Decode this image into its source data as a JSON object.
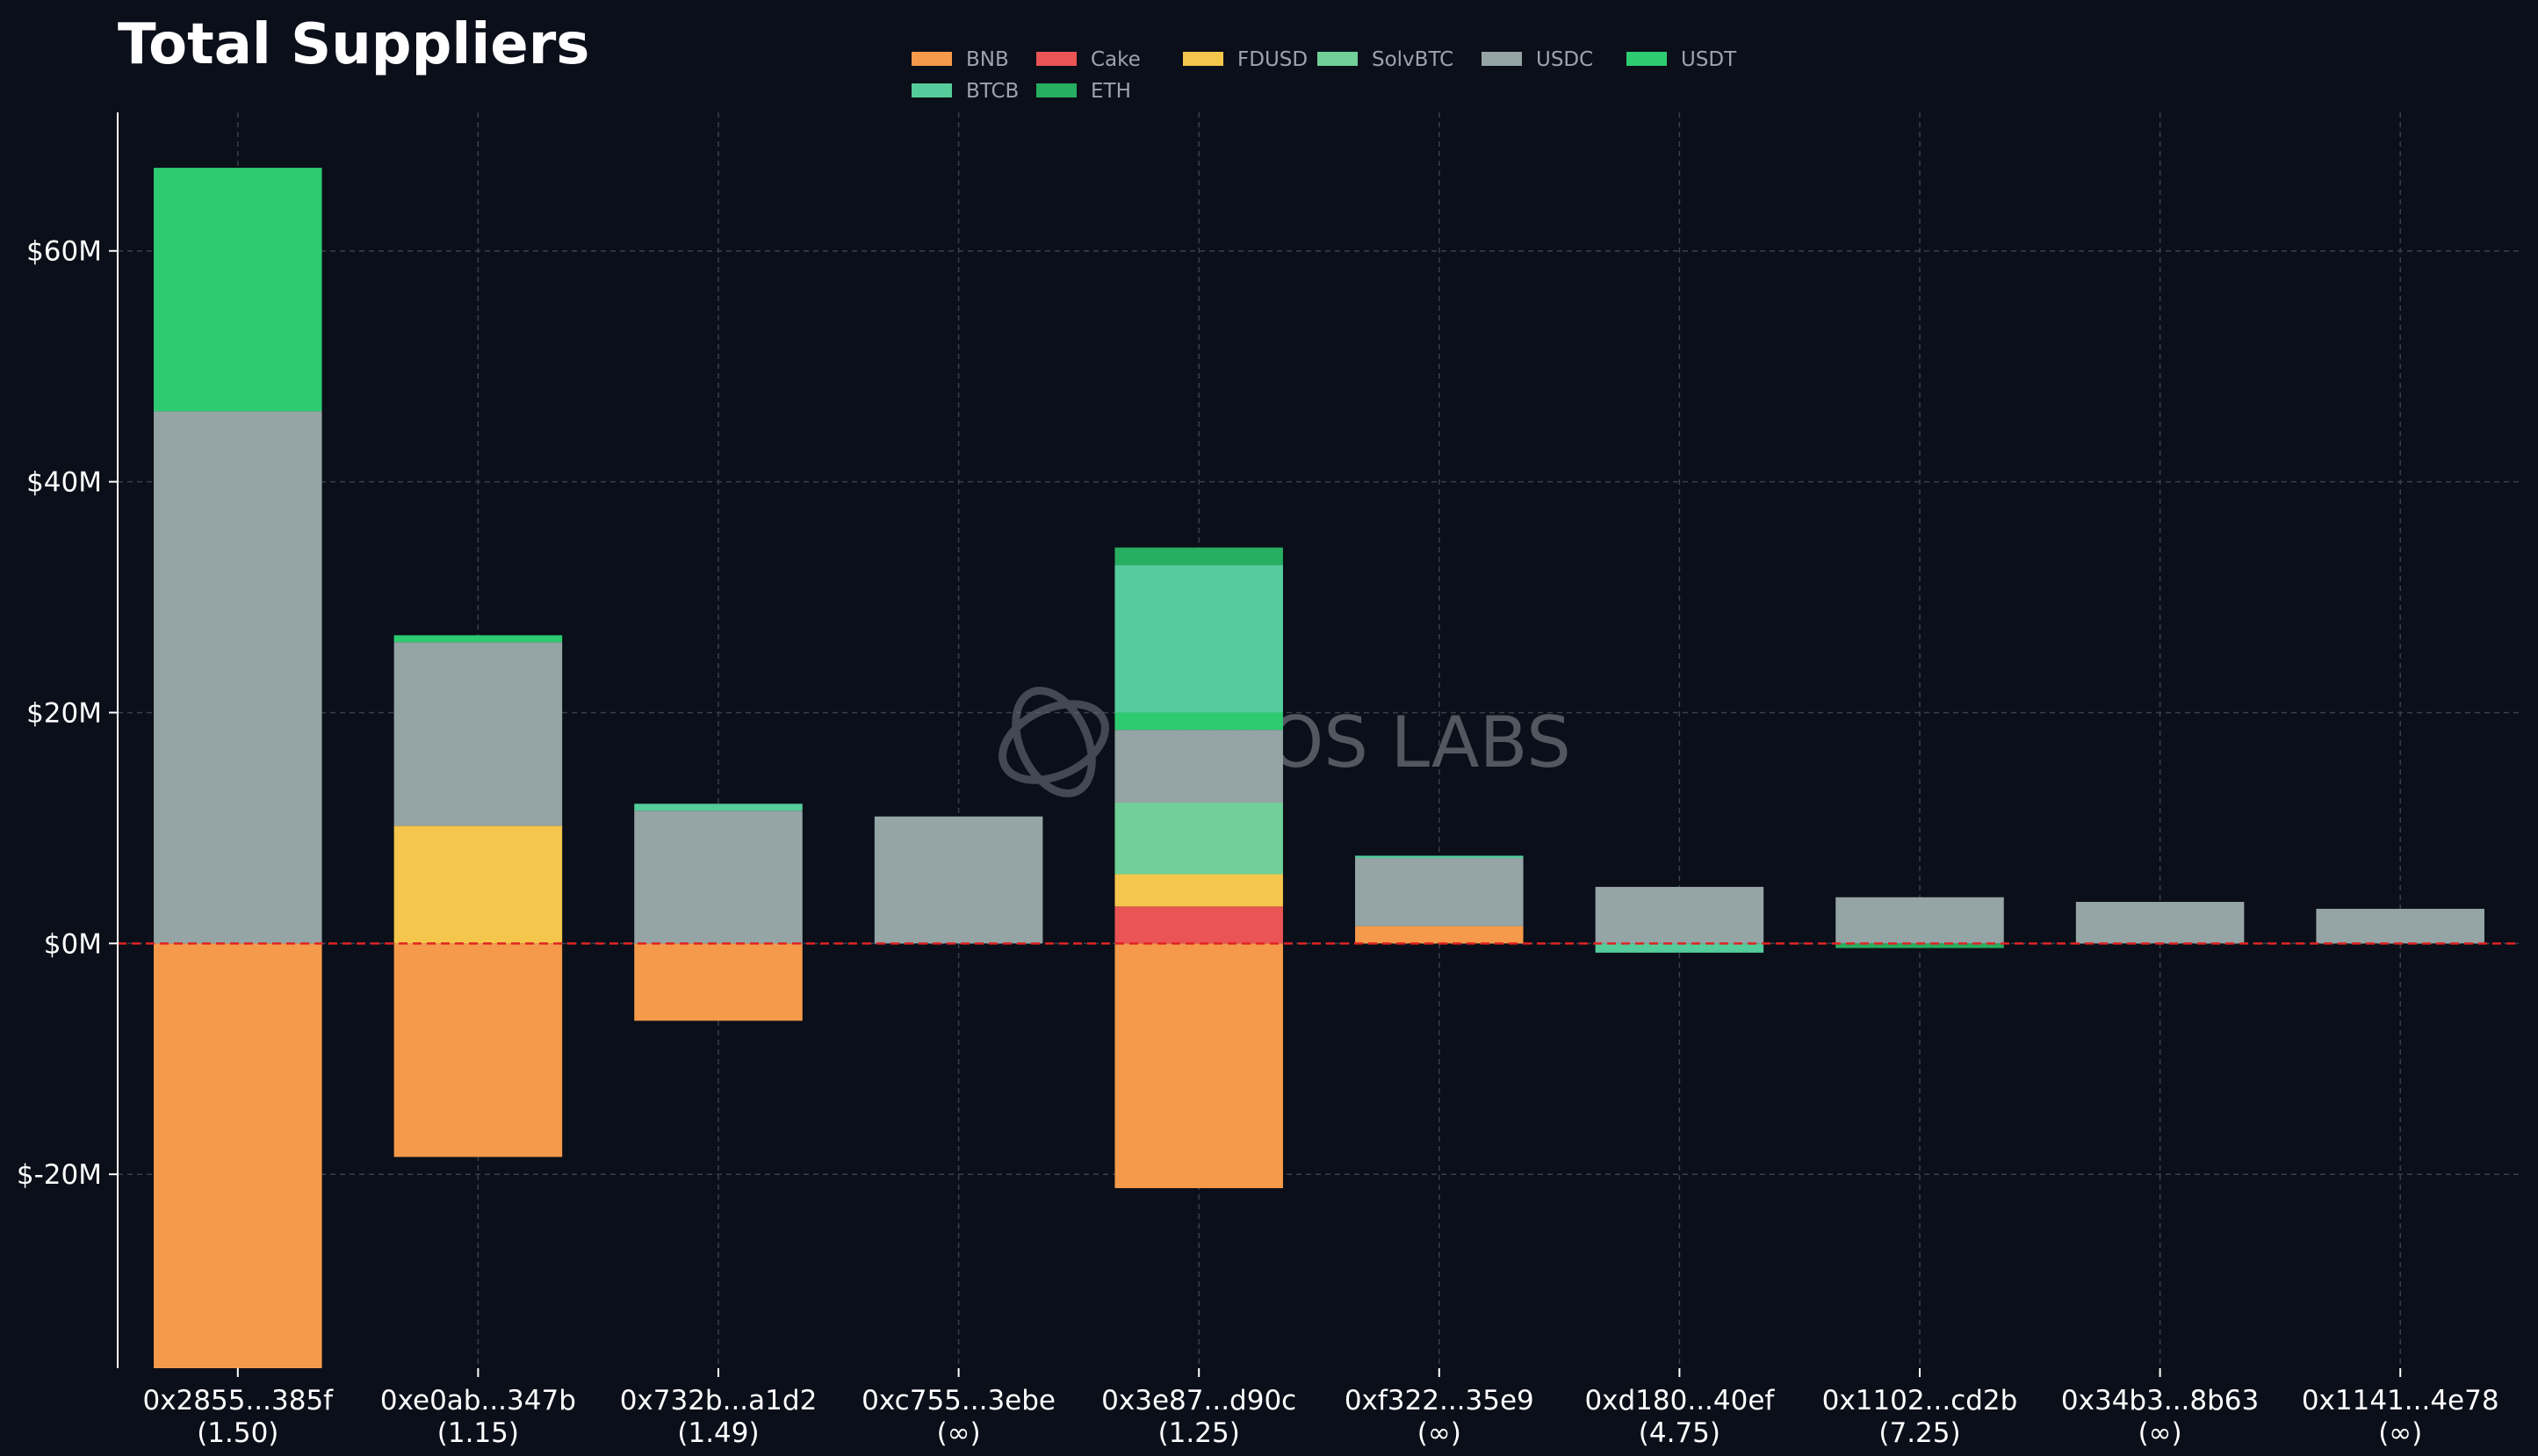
{
  "chart_data": {
    "type": "bar",
    "stacked": true,
    "title": "Total Suppliers",
    "xlabel": "",
    "ylabel": "",
    "ylim": [
      -36.8,
      72
    ],
    "yticks": [
      -20,
      0,
      20,
      40,
      60
    ],
    "ytick_labels": [
      "$-20M",
      "$0M",
      "$20M",
      "$40M",
      "$60M"
    ],
    "grid": true,
    "legend_position": "top-center",
    "zero_line_color": "#e02424",
    "categories": [
      "0x2855...385f",
      "0xe0ab...347b",
      "0x732b...a1d2",
      "0xc755...3ebe",
      "0x3e87...d90c",
      "0xf322...35e9",
      "0xd180...40ef",
      "0x1102...cd2b",
      "0x34b3...8b63",
      "0x1141...4e78"
    ],
    "category_sublabels": [
      "(1.50)",
      "(1.15)",
      "(1.49)",
      "(∞)",
      "(1.25)",
      "(∞)",
      "(4.75)",
      "(7.25)",
      "(∞)",
      "(∞)"
    ],
    "series": [
      {
        "name": "BNB",
        "color": "#f59a4a",
        "values": [
          -36.8,
          -18.5,
          -6.7,
          0,
          -21.2,
          1.5,
          0,
          0,
          0,
          0
        ]
      },
      {
        "name": "Cake",
        "color": "#ea5455",
        "values": [
          0,
          0,
          0,
          0,
          3.2,
          0,
          0,
          0,
          0,
          0
        ]
      },
      {
        "name": "FDUSD",
        "color": "#f4c64c",
        "values": [
          0,
          10.2,
          0,
          0,
          2.8,
          0,
          0,
          0,
          0,
          0
        ]
      },
      {
        "name": "SolvBTC",
        "color": "#70d097",
        "values": [
          0,
          0,
          0,
          0,
          6.2,
          0,
          0,
          0,
          0,
          0
        ]
      },
      {
        "name": "USDC",
        "color": "#95a5a6",
        "values": [
          46.1,
          15.9,
          11.5,
          11.0,
          6.3,
          5.9,
          4.9,
          4.0,
          3.6,
          3.0
        ]
      },
      {
        "name": "USDT",
        "color": "#2ecc71",
        "values": [
          21.1,
          0.6,
          0,
          0,
          1.5,
          0,
          0,
          0,
          0,
          0
        ]
      },
      {
        "name": "BTCB",
        "color": "#55cc9b",
        "values": [
          0,
          0,
          0.6,
          0,
          12.8,
          0.2,
          -0.8,
          0,
          0,
          0
        ]
      },
      {
        "name": "ETH",
        "color": "#27ae60",
        "values": [
          0,
          0,
          0,
          0,
          1.5,
          0,
          0,
          -0.4,
          0,
          0
        ]
      }
    ],
    "watermark": "CHAOS LABS"
  }
}
